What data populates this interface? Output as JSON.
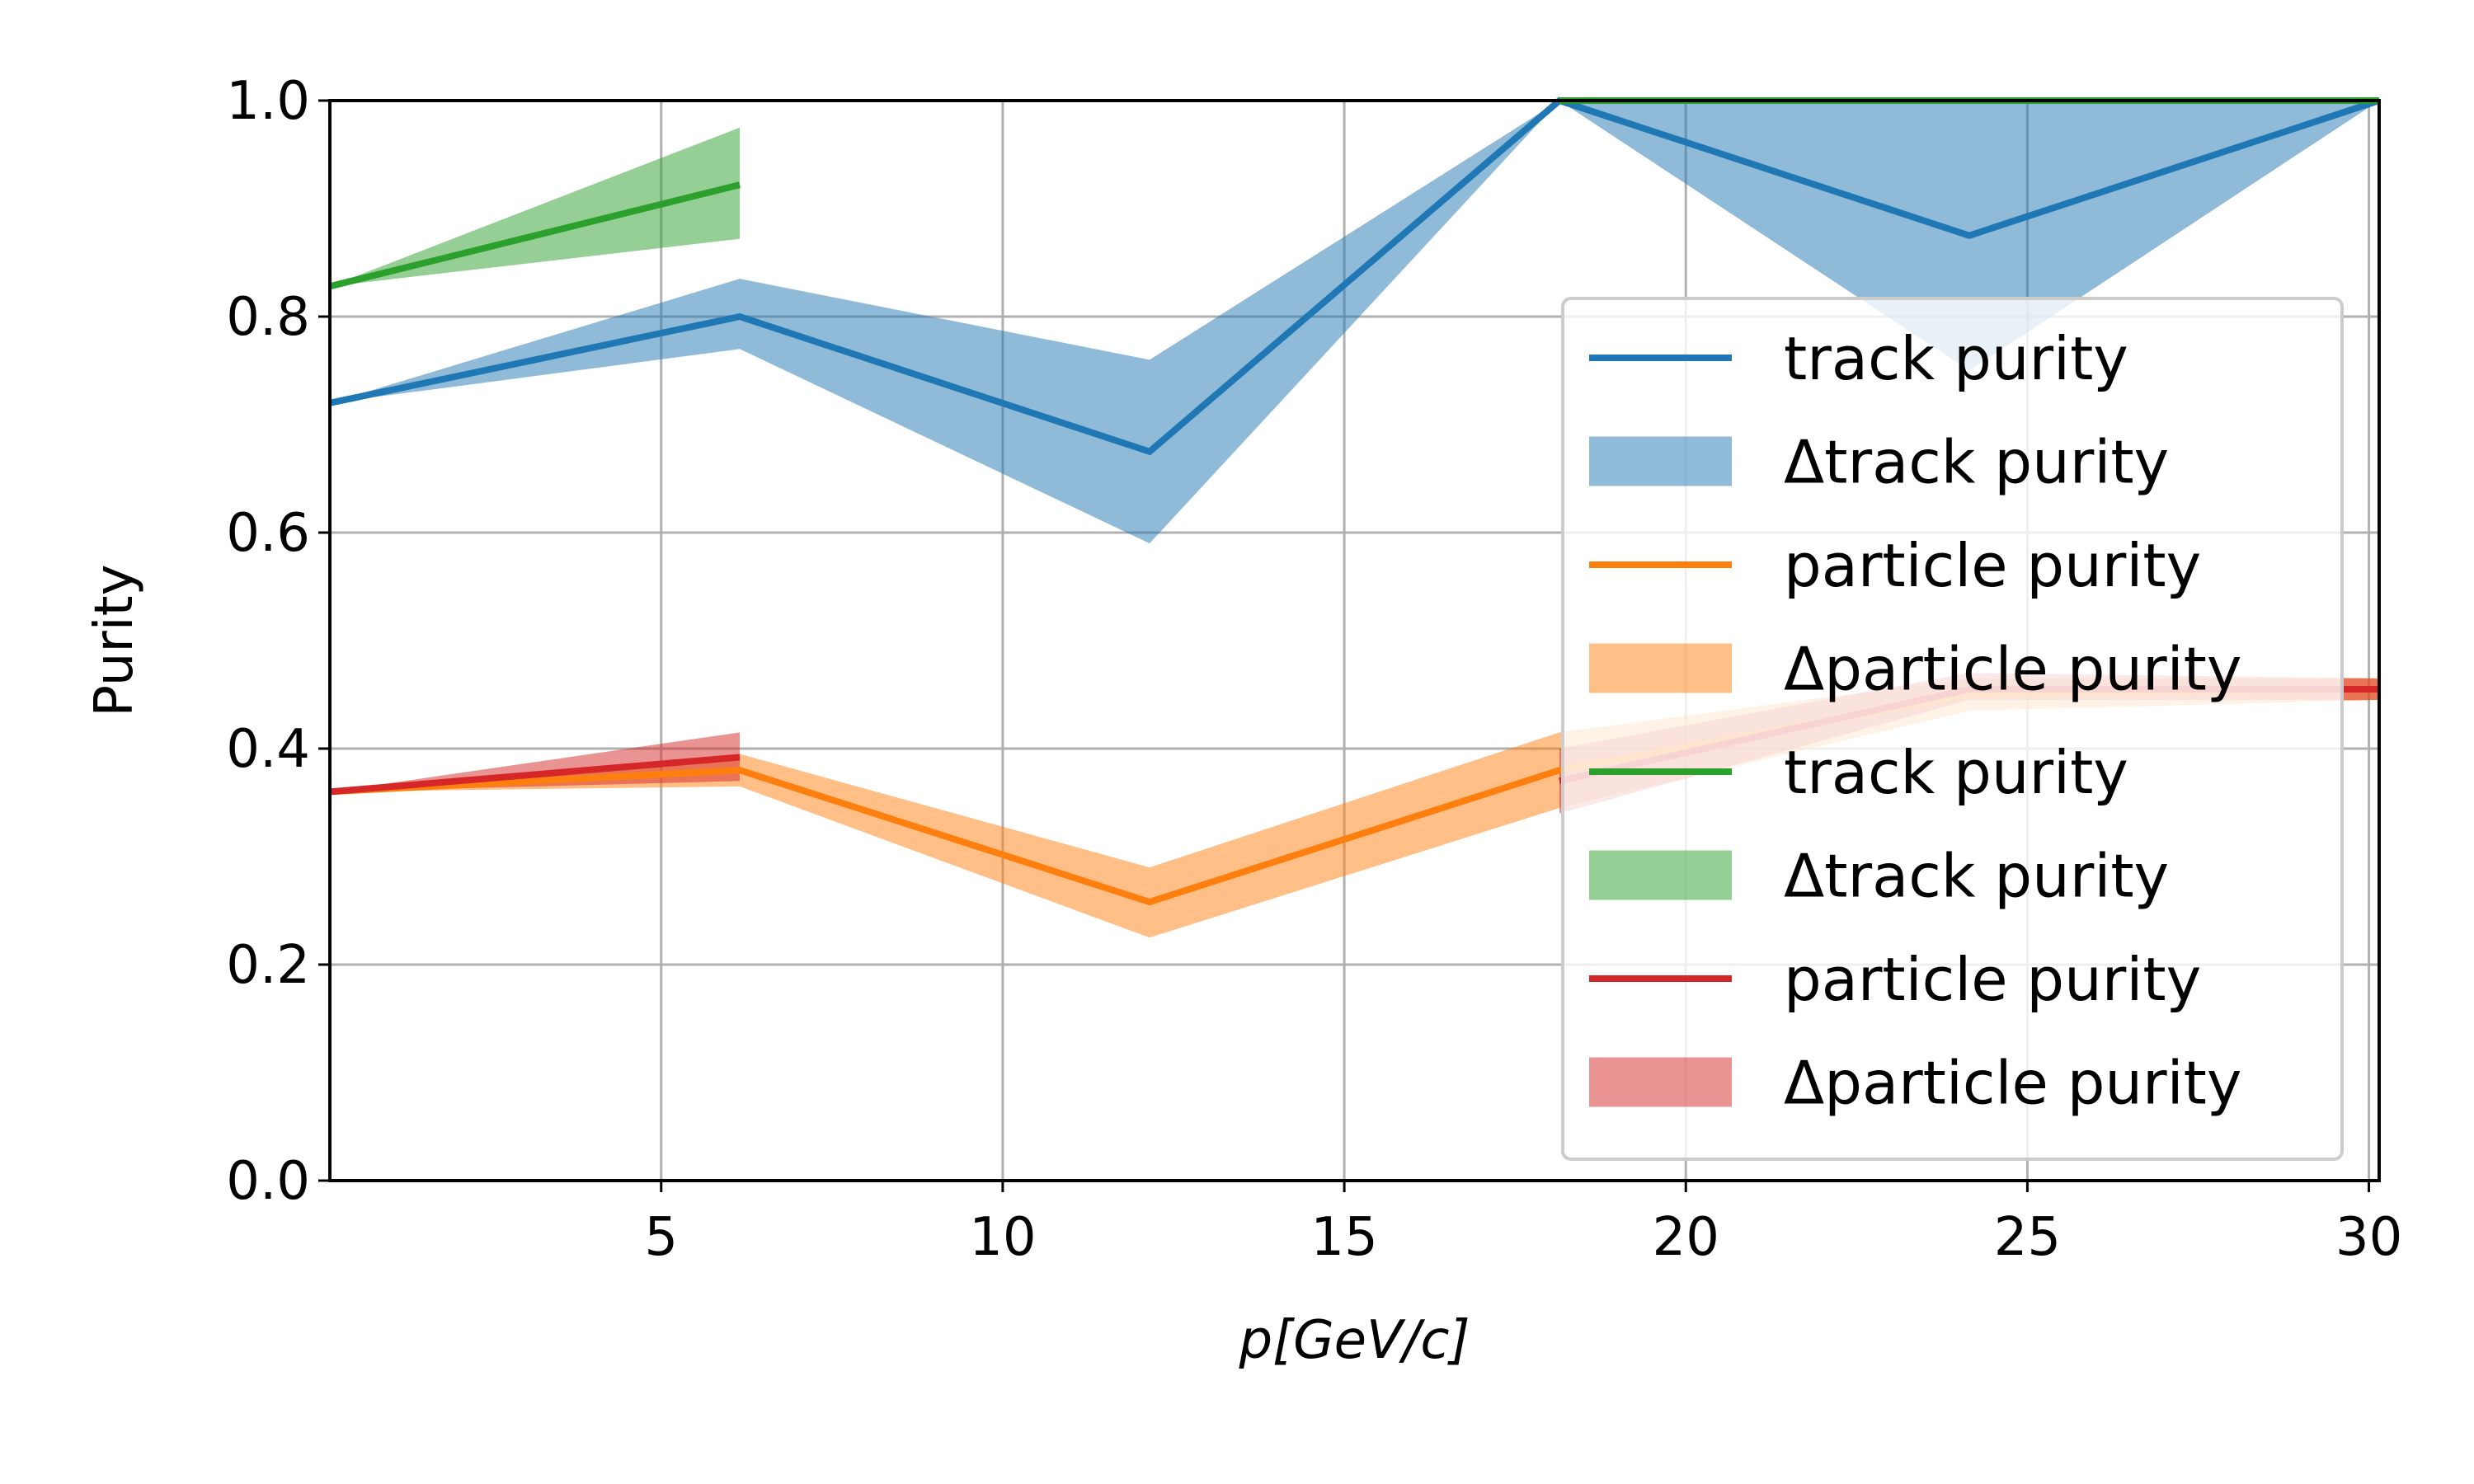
{
  "chart_data": {
    "type": "line",
    "title": "",
    "xlabel": "p[GeV/c]",
    "ylabel": "Purity",
    "xlim": [
      0.15,
      30.15
    ],
    "ylim": [
      0.0,
      1.0
    ],
    "xticks": [
      5,
      10,
      15,
      20,
      25,
      30
    ],
    "xtick_labels": [
      "5",
      "10",
      "15",
      "20",
      "25",
      "30"
    ],
    "yticks": [
      0.0,
      0.2,
      0.4,
      0.6,
      0.8,
      1.0
    ],
    "ytick_labels": [
      "0.0",
      "0.2",
      "0.4",
      "0.6",
      "0.8",
      "1.0"
    ],
    "grid": true,
    "legend_position": "right",
    "series": [
      {
        "name": "track purity",
        "band_name": "Δtrack purity",
        "color": "#1f77b4",
        "x": [
          0.15,
          6.15,
          12.15,
          18.15,
          24.15,
          30.15
        ],
        "values": [
          0.72,
          0.8,
          0.675,
          1.0,
          0.875,
          1.0
        ],
        "band_upper": [
          0.72,
          0.835,
          0.76,
          1.0,
          1.0,
          1.0
        ],
        "band_lower": [
          0.72,
          0.77,
          0.59,
          1.0,
          0.75,
          1.0
        ]
      },
      {
        "name": "particle purity",
        "band_name": "Δparticle purity",
        "color": "#ff7f0e",
        "x": [
          0.15,
          6.15,
          12.15,
          18.15,
          24.15,
          30.15
        ],
        "values": [
          0.36,
          0.38,
          0.258,
          0.38,
          0.45,
          0.455
        ],
        "band_upper": [
          0.36,
          0.395,
          0.29,
          0.415,
          0.465,
          0.465
        ],
        "band_lower": [
          0.36,
          0.365,
          0.225,
          0.345,
          0.435,
          0.445
        ]
      },
      {
        "name": "track purity",
        "band_name": "Δtrack purity",
        "color": "#2ca02c",
        "x": [
          0.15,
          6.15,
          12.15,
          18.15,
          24.15,
          30.15
        ],
        "values": [
          0.828,
          0.922,
          null,
          1.0,
          1.0,
          1.0
        ],
        "band_upper": [
          0.828,
          0.975,
          null,
          1.0,
          1.0,
          1.0
        ],
        "band_lower": [
          0.828,
          0.872,
          null,
          1.0,
          1.0,
          1.0
        ]
      },
      {
        "name": "particle purity",
        "band_name": "Δparticle purity",
        "color": "#d62728",
        "x": [
          0.15,
          6.15,
          12.15,
          18.15,
          24.15,
          30.15
        ],
        "values": [
          0.36,
          0.392,
          null,
          0.37,
          0.455,
          0.455
        ],
        "band_upper": [
          0.36,
          0.415,
          null,
          0.4,
          0.47,
          0.465
        ],
        "band_lower": [
          0.36,
          0.37,
          null,
          0.34,
          0.445,
          0.445
        ]
      }
    ]
  }
}
